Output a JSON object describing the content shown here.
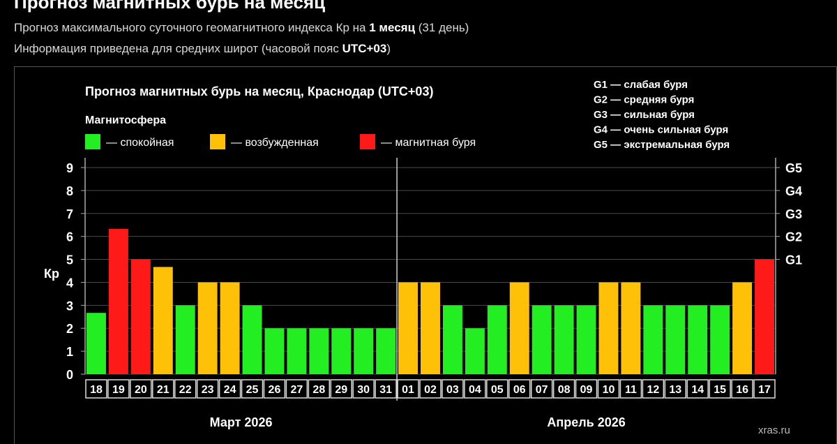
{
  "header": {
    "title": "Прогноз магнитных бурь на месяц",
    "line1_prefix": "Прогноз максимального суточного геомагнитного индекса Кр на ",
    "line1_bold": "1 месяц",
    "line1_suffix": " (31 день)",
    "line2_prefix": "Информация приведена для средних широт (часовой пояс ",
    "line2_bold": "UTC+03",
    "line2_suffix": ")"
  },
  "colors": {
    "calm": "#22ee22",
    "excited": "#ffc107",
    "storm": "#ff1a1a",
    "background": "#000000"
  },
  "chart_data": {
    "type": "bar",
    "title": "Прогноз магнитных бурь на месяц, Краснодар (UTC+03)",
    "legend_title": "Магнитосфера",
    "legend": [
      {
        "key": "calm",
        "label": "— спокойная"
      },
      {
        "key": "excited",
        "label": "— возбужденная"
      },
      {
        "key": "storm",
        "label": "— магнитная буря"
      }
    ],
    "g_legend": [
      "G1 — слабая буря",
      "G2 — средняя буря",
      "G3 — сильная буря",
      "G4 — очень сильная буря",
      "G5 — экстремальная буря"
    ],
    "ylabel": "Кр",
    "ylim": [
      0,
      9
    ],
    "yticks": [
      "0",
      "1",
      "2",
      "3",
      "4",
      "5",
      "6",
      "7",
      "8",
      "9"
    ],
    "right_ticks": [
      {
        "label": "G1",
        "value": 5
      },
      {
        "label": "G2",
        "value": 6
      },
      {
        "label": "G3",
        "value": 7
      },
      {
        "label": "G4",
        "value": 8
      },
      {
        "label": "G5",
        "value": 9
      }
    ],
    "months": [
      {
        "label": "Март 2026",
        "start": 0,
        "count": 14
      },
      {
        "label": "Апрель 2026",
        "start": 14,
        "count": 17
      }
    ],
    "categories": [
      "18",
      "19",
      "20",
      "21",
      "22",
      "23",
      "24",
      "25",
      "26",
      "27",
      "28",
      "29",
      "30",
      "31",
      "01",
      "02",
      "03",
      "04",
      "05",
      "06",
      "07",
      "08",
      "09",
      "10",
      "11",
      "12",
      "13",
      "14",
      "15",
      "16",
      "17"
    ],
    "values": [
      2.67,
      6.33,
      5,
      4.67,
      3,
      4,
      4,
      3,
      2,
      2,
      2,
      2,
      2,
      2,
      4,
      4,
      3,
      2,
      3,
      4,
      3,
      3,
      3,
      4,
      4,
      3,
      3,
      3,
      3,
      4,
      5
    ],
    "levels": [
      "calm",
      "storm",
      "storm",
      "excited",
      "calm",
      "excited",
      "excited",
      "calm",
      "calm",
      "calm",
      "calm",
      "calm",
      "calm",
      "calm",
      "excited",
      "excited",
      "calm",
      "calm",
      "calm",
      "excited",
      "calm",
      "calm",
      "calm",
      "excited",
      "excited",
      "calm",
      "calm",
      "calm",
      "calm",
      "excited",
      "storm"
    ],
    "grid": true,
    "source": "xras.ru"
  }
}
